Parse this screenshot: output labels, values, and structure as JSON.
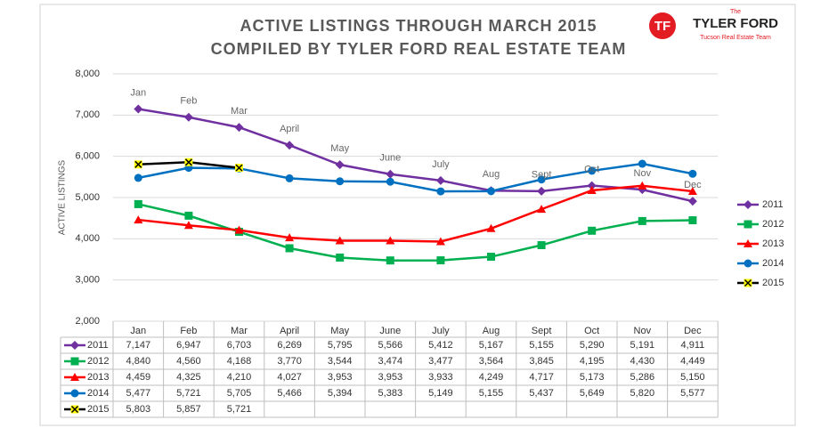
{
  "logo": {
    "mark": "TF",
    "the": "The",
    "name": "TYLER FORD",
    "tagline": "Tucson Real Estate Team"
  },
  "chart_data": {
    "type": "line",
    "title": "ACTIVE LISTINGS THROUGH MARCH 2015",
    "subtitle": "COMPILED BY TYLER FORD REAL ESTATE TEAM",
    "y_label": "ACTIVE LISTINGS",
    "categories": [
      "Jan",
      "Feb",
      "Mar",
      "April",
      "May",
      "June",
      "July",
      "Aug",
      "Sept",
      "Oct",
      "Nov",
      "Dec"
    ],
    "ylim": [
      2000,
      8000
    ],
    "yticks": [
      {
        "value": 2000,
        "label": "2,000"
      },
      {
        "value": 3000,
        "label": "3,000"
      },
      {
        "value": 4000,
        "label": "4,000"
      },
      {
        "value": 5000,
        "label": "5,000"
      },
      {
        "value": 6000,
        "label": "6,000"
      },
      {
        "value": 7000,
        "label": "7,000"
      },
      {
        "value": 8000,
        "label": "8,000"
      }
    ],
    "grid": true,
    "legend": "right",
    "series": [
      {
        "name": "2011",
        "color": "#7030a0",
        "marker": "diamond",
        "values": [
          7147,
          6947,
          6703,
          6269,
          5795,
          5566,
          5412,
          5167,
          5155,
          5290,
          5191,
          4911
        ],
        "value_labels": [
          "7,147",
          "6,947",
          "6,703",
          "6,269",
          "5,795",
          "5,566",
          "5,412",
          "5,167",
          "5,155",
          "5,290",
          "5,191",
          "4,911"
        ]
      },
      {
        "name": "2012",
        "color": "#00b050",
        "marker": "square",
        "values": [
          4840,
          4560,
          4168,
          3770,
          3544,
          3474,
          3477,
          3564,
          3845,
          4195,
          4430,
          4449
        ],
        "value_labels": [
          "4,840",
          "4,560",
          "4,168",
          "3,770",
          "3,544",
          "3,474",
          "3,477",
          "3,564",
          "3,845",
          "4,195",
          "4,430",
          "4,449"
        ]
      },
      {
        "name": "2013",
        "color": "#ff0000",
        "marker": "triangle",
        "values": [
          4459,
          4325,
          4210,
          4027,
          3953,
          3953,
          3933,
          4249,
          4717,
          5173,
          5286,
          5150
        ],
        "value_labels": [
          "4,459",
          "4,325",
          "4,210",
          "4,027",
          "3,953",
          "3,953",
          "3,933",
          "4,249",
          "4,717",
          "5,173",
          "5,286",
          "5,150"
        ]
      },
      {
        "name": "2014",
        "color": "#0070c0",
        "marker": "circle",
        "values": [
          5477,
          5721,
          5705,
          5466,
          5394,
          5383,
          5149,
          5155,
          5437,
          5649,
          5820,
          5577
        ],
        "value_labels": [
          "5,477",
          "5,721",
          "5,705",
          "5,466",
          "5,394",
          "5,383",
          "5,149",
          "5,155",
          "5,437",
          "5,649",
          "5,820",
          "5,577"
        ]
      },
      {
        "name": "2015",
        "color": "#000000",
        "marker": "x",
        "values": [
          5803,
          5857,
          5721,
          null,
          null,
          null,
          null,
          null,
          null,
          null,
          null,
          null
        ],
        "value_labels": [
          "5,803",
          "5,857",
          "5,721",
          null,
          null,
          null,
          null,
          null,
          null,
          null,
          null,
          null
        ]
      }
    ]
  }
}
